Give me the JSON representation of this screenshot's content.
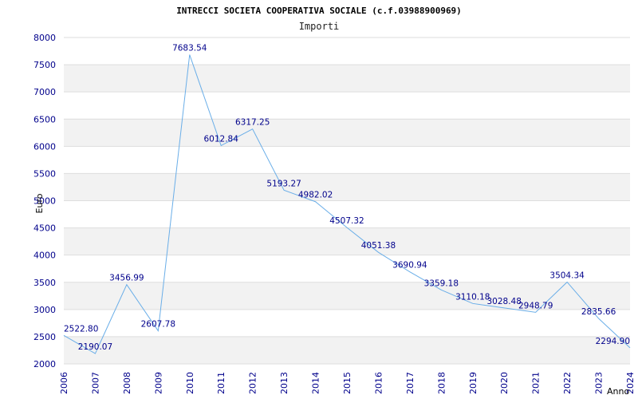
{
  "chart_data": {
    "type": "line",
    "title": "INTRECCI SOCIETA COOPERATIVA SOCIALE (c.f.03988900969)",
    "subtitle": "Importi",
    "xlabel": "Anno",
    "ylabel": "Euro",
    "ylim": [
      2000,
      8000
    ],
    "yticks": [
      2000,
      2500,
      3000,
      3500,
      4000,
      4500,
      5000,
      5500,
      6000,
      6500,
      7000,
      7500,
      8000
    ],
    "grid": true,
    "line_color": "#6aaee8",
    "band_color": "#f2f2f2",
    "x": [
      "2006",
      "2007",
      "2008",
      "2009",
      "2010",
      "2011",
      "2012",
      "2013",
      "2014",
      "2015",
      "2016",
      "2017",
      "2018",
      "2019",
      "2020",
      "2021",
      "2022",
      "2023",
      "2024"
    ],
    "values": [
      2522.8,
      2190.07,
      3456.99,
      2607.78,
      7683.54,
      6012.84,
      6317.25,
      5193.27,
      4982.02,
      4507.32,
      4051.38,
      3690.94,
      3359.18,
      3110.18,
      3028.48,
      2948.79,
      3504.34,
      2835.66,
      2294.9
    ],
    "data_labels": [
      "2522.80",
      "2190.07",
      "3456.99",
      "2607.78",
      "7683.54",
      "6012.84",
      "6317.25",
      "5193.27",
      "4982.02",
      "4507.32",
      "4051.38",
      "3690.94",
      "3359.18",
      "3110.18",
      "3028.48",
      "2948.79",
      "3504.34",
      "2835.66",
      "2294.90"
    ]
  }
}
